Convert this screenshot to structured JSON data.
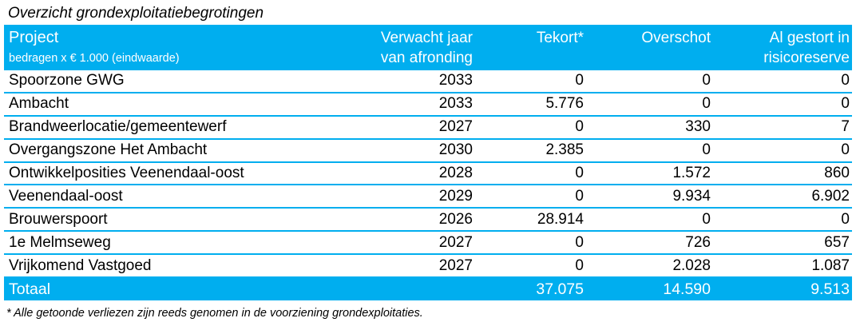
{
  "title": "Overzicht grondexploitatiebegrotingen",
  "colors": {
    "accent": "#00AEEF",
    "header_text": "#FFFFFF",
    "body_text": "#000000"
  },
  "table": {
    "header": {
      "project_label": "Project",
      "project_sublabel": "bedragen x € 1.000 (eindwaarde)",
      "year_line1": "Verwacht jaar",
      "year_line2": "van afronding",
      "tekort_label": "Tekort*",
      "overschot_label": "Overschot",
      "reserve_line1": "Al gestort in",
      "reserve_line2": "risicoreserve"
    },
    "rows": [
      {
        "project": "Spoorzone GWG",
        "year": "2033",
        "tekort": "0",
        "overschot": "0",
        "reserve": "0"
      },
      {
        "project": "Ambacht",
        "year": "2033",
        "tekort": "5.776",
        "overschot": "0",
        "reserve": "0"
      },
      {
        "project": "Brandweerlocatie/gemeentewerf",
        "year": "2027",
        "tekort": "0",
        "overschot": "330",
        "reserve": "7"
      },
      {
        "project": "Overgangszone Het Ambacht",
        "year": "2030",
        "tekort": "2.385",
        "overschot": "0",
        "reserve": "0"
      },
      {
        "project": "Ontwikkelposities Veenendaal-oost",
        "year": "2028",
        "tekort": "0",
        "overschot": "1.572",
        "reserve": "860"
      },
      {
        "project": "Veenendaal-oost",
        "year": "2029",
        "tekort": "0",
        "overschot": "9.934",
        "reserve": "6.902"
      },
      {
        "project": "Brouwerspoort",
        "year": "2026",
        "tekort": "28.914",
        "overschot": "0",
        "reserve": "0"
      },
      {
        "project": "1e Melmseweg",
        "year": "2027",
        "tekort": "0",
        "overschot": "726",
        "reserve": "657"
      },
      {
        "project": "Vrijkomend Vastgoed",
        "year": "2027",
        "tekort": "0",
        "overschot": "2.028",
        "reserve": "1.087"
      }
    ],
    "total": {
      "label": "Totaal",
      "year": "",
      "tekort": "37.075",
      "overschot": "14.590",
      "reserve": "9.513"
    }
  },
  "footnote": "* Alle getoonde verliezen zijn reeds genomen in de voorziening grondexploitaties."
}
